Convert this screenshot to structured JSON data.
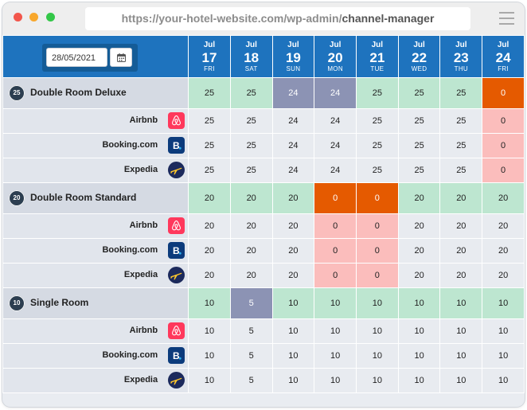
{
  "browser": {
    "url_host": "https://your-hotel-website.com/wp-admin/",
    "url_path": "channel-manager"
  },
  "date_picker": {
    "value": "28/05/2021"
  },
  "days": [
    {
      "month": "Jul",
      "date": "17",
      "weekday": "FRI"
    },
    {
      "month": "Jul",
      "date": "18",
      "weekday": "SAT"
    },
    {
      "month": "Jul",
      "date": "19",
      "weekday": "SUN"
    },
    {
      "month": "Jul",
      "date": "20",
      "weekday": "MON"
    },
    {
      "month": "Jul",
      "date": "21",
      "weekday": "TUE"
    },
    {
      "month": "Jul",
      "date": "22",
      "weekday": "WED"
    },
    {
      "month": "Jul",
      "date": "23",
      "weekday": "THU"
    },
    {
      "month": "Jul",
      "date": "24",
      "weekday": "FRI"
    }
  ],
  "colors": {
    "header": "#1e73be",
    "available": "#bde6d0",
    "reduced": "#8c93b4",
    "sold_out": "#e55a00",
    "channel_closed": "#fbbdbc",
    "badge": "#2c3e50"
  },
  "rooms": [
    {
      "name": "Double Room Deluxe",
      "count": "25",
      "values": [
        "25",
        "25",
        "24",
        "24",
        "25",
        "25",
        "25",
        "0"
      ],
      "states": [
        "green",
        "green",
        "purple",
        "purple",
        "green",
        "green",
        "green",
        "orange"
      ],
      "channels": [
        {
          "name": "Airbnb",
          "icon": "airbnb-icon",
          "values": [
            "25",
            "25",
            "24",
            "24",
            "25",
            "25",
            "25",
            "0"
          ]
        },
        {
          "name": "Booking.com",
          "icon": "booking-icon",
          "values": [
            "25",
            "25",
            "24",
            "24",
            "25",
            "25",
            "25",
            "0"
          ]
        },
        {
          "name": "Expedia",
          "icon": "expedia-icon",
          "values": [
            "25",
            "25",
            "24",
            "24",
            "25",
            "25",
            "25",
            "0"
          ]
        }
      ]
    },
    {
      "name": "Double Room Standard",
      "count": "20",
      "values": [
        "20",
        "20",
        "20",
        "0",
        "0",
        "20",
        "20",
        "20"
      ],
      "states": [
        "green",
        "green",
        "green",
        "orange",
        "orange",
        "green",
        "green",
        "green"
      ],
      "channels": [
        {
          "name": "Airbnb",
          "icon": "airbnb-icon",
          "values": [
            "20",
            "20",
            "20",
            "0",
            "0",
            "20",
            "20",
            "20"
          ]
        },
        {
          "name": "Booking.com",
          "icon": "booking-icon",
          "values": [
            "20",
            "20",
            "20",
            "0",
            "0",
            "20",
            "20",
            "20"
          ]
        },
        {
          "name": "Expedia",
          "icon": "expedia-icon",
          "values": [
            "20",
            "20",
            "20",
            "0",
            "0",
            "20",
            "20",
            "20"
          ]
        }
      ]
    },
    {
      "name": "Single Room",
      "count": "10",
      "values": [
        "10",
        "5",
        "10",
        "10",
        "10",
        "10",
        "10",
        "10"
      ],
      "states": [
        "green",
        "purple",
        "green",
        "green",
        "green",
        "green",
        "green",
        "green"
      ],
      "channels": [
        {
          "name": "Airbnb",
          "icon": "airbnb-icon",
          "values": [
            "10",
            "5",
            "10",
            "10",
            "10",
            "10",
            "10",
            "10"
          ]
        },
        {
          "name": "Booking.com",
          "icon": "booking-icon",
          "values": [
            "10",
            "5",
            "10",
            "10",
            "10",
            "10",
            "10",
            "10"
          ]
        },
        {
          "name": "Expedia",
          "icon": "expedia-icon",
          "values": [
            "10",
            "5",
            "10",
            "10",
            "10",
            "10",
            "10",
            "10"
          ]
        }
      ]
    }
  ]
}
